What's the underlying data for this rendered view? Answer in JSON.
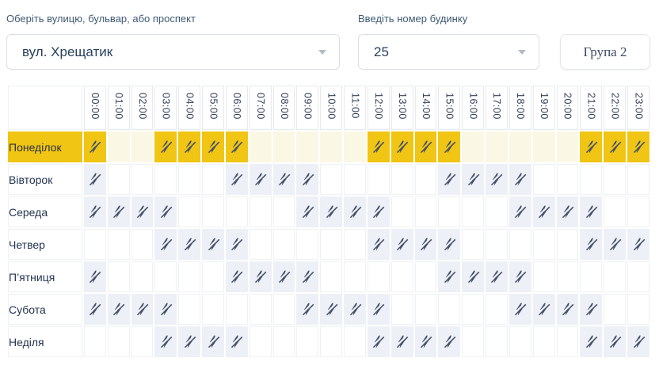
{
  "street": {
    "label": "Оберіть вулицю, бульвар, або проспект",
    "value": "вул. Хрещатик"
  },
  "house": {
    "label": "Введіть номер будинку",
    "value": "25"
  },
  "group": {
    "label": "Група 2"
  },
  "schedule": {
    "hours": [
      "00:00",
      "01:00",
      "02:00",
      "03:00",
      "04:00",
      "05:00",
      "06:00",
      "07:00",
      "08:00",
      "09:00",
      "10:00",
      "11:00",
      "12:00",
      "13:00",
      "14:00",
      "15:00",
      "16:00",
      "17:00",
      "18:00",
      "19:00",
      "20:00",
      "21:00",
      "22:00",
      "23:00"
    ],
    "outage_icon": "power-off-crossed-lightning",
    "days": [
      {
        "label": "Понеділок",
        "highlight": true,
        "outage_hours": [
          0,
          3,
          4,
          5,
          6,
          12,
          13,
          14,
          15,
          21,
          22,
          23
        ]
      },
      {
        "label": "Вівторок",
        "highlight": false,
        "outage_hours": [
          0,
          6,
          7,
          8,
          9,
          15,
          16,
          17,
          18
        ]
      },
      {
        "label": "Середа",
        "highlight": false,
        "outage_hours": [
          0,
          1,
          2,
          3,
          9,
          10,
          11,
          12,
          18,
          19,
          20,
          21
        ]
      },
      {
        "label": "Четвер",
        "highlight": false,
        "outage_hours": [
          3,
          4,
          5,
          6,
          12,
          13,
          14,
          15,
          21,
          22,
          23
        ]
      },
      {
        "label": "П’ятниця",
        "highlight": false,
        "outage_hours": [
          0,
          6,
          7,
          8,
          9,
          15,
          16,
          17,
          18
        ]
      },
      {
        "label": "Субота",
        "highlight": false,
        "outage_hours": [
          0,
          1,
          2,
          3,
          9,
          10,
          11,
          12,
          18,
          19,
          20,
          21
        ]
      },
      {
        "label": "Неділя",
        "highlight": false,
        "outage_hours": [
          3,
          4,
          5,
          6,
          12,
          13,
          14,
          15,
          21,
          22,
          23
        ]
      }
    ]
  },
  "colors": {
    "highlight_yellow": "#f0c514",
    "highlight_pale_yellow": "#fbf7e5",
    "outage_cell_gray": "#edf0f6",
    "icon_navy": "#44506a",
    "label_text": "#3e5a74"
  }
}
